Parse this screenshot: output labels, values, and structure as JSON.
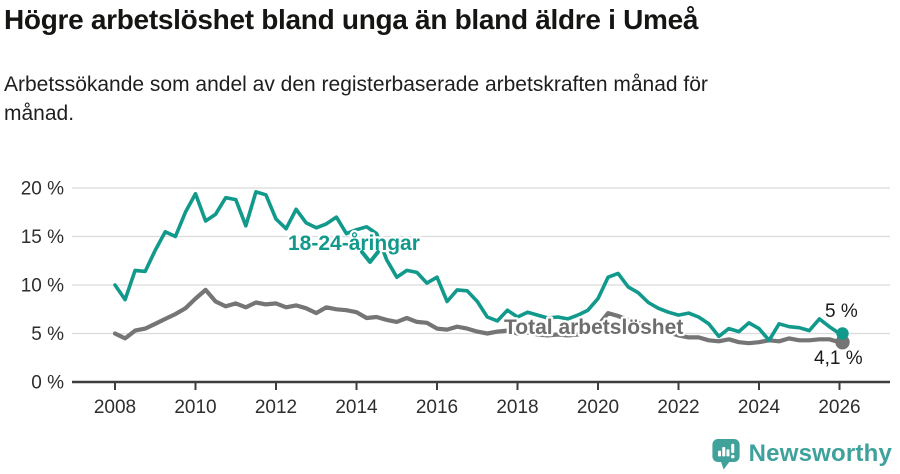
{
  "header": {
    "title": "Högre arbetslöshet bland unga än bland äldre i Umeå",
    "subtitle_line1": "Arbetssökande som andel av den registerbaserade arbetskraften månad för",
    "subtitle_line2": "månad."
  },
  "chart_data": {
    "type": "line",
    "title": "Högre arbetslöshet bland unga än bland äldre i Umeå",
    "subtitle": "Arbetssökande som andel av den registerbaserade arbetskraften månad för månad.",
    "xlabel": "",
    "ylabel": "",
    "x_unit": "decimal years (monthly series shown, sampled quarterly here)",
    "ylim": [
      0,
      20
    ],
    "grid": "horizontal",
    "legend_position": "inline-annotations",
    "yticks": [
      {
        "v": 0,
        "label": "0 %"
      },
      {
        "v": 5,
        "label": "5 %"
      },
      {
        "v": 10,
        "label": "10 %"
      },
      {
        "v": 15,
        "label": "15 %"
      },
      {
        "v": 20,
        "label": "20 %"
      }
    ],
    "xticks": [
      {
        "v": 2008,
        "label": "2008"
      },
      {
        "v": 2010,
        "label": "2010"
      },
      {
        "v": 2012,
        "label": "2012"
      },
      {
        "v": 2014,
        "label": "2014"
      },
      {
        "v": 2016,
        "label": "2016"
      },
      {
        "v": 2018,
        "label": "2018"
      },
      {
        "v": 2020,
        "label": "2020"
      },
      {
        "v": 2022,
        "label": "2022"
      },
      {
        "v": 2024,
        "label": "2024"
      },
      {
        "v": 2026,
        "label": "2026"
      }
    ],
    "x": [
      2008.0,
      2008.25,
      2008.5,
      2008.75,
      2009.0,
      2009.25,
      2009.5,
      2009.75,
      2010.0,
      2010.25,
      2010.5,
      2010.75,
      2011.0,
      2011.25,
      2011.5,
      2011.75,
      2012.0,
      2012.25,
      2012.5,
      2012.75,
      2013.0,
      2013.25,
      2013.5,
      2013.75,
      2014.0,
      2014.25,
      2014.5,
      2014.75,
      2015.0,
      2015.25,
      2015.5,
      2015.75,
      2016.0,
      2016.25,
      2016.5,
      2016.75,
      2017.0,
      2017.25,
      2017.5,
      2017.75,
      2018.0,
      2018.25,
      2018.5,
      2018.75,
      2019.0,
      2019.25,
      2019.5,
      2019.75,
      2020.0,
      2020.25,
      2020.5,
      2020.75,
      2021.0,
      2021.25,
      2021.5,
      2021.75,
      2022.0,
      2022.25,
      2022.5,
      2022.75,
      2023.0,
      2023.25,
      2023.5,
      2023.75,
      2024.0,
      2024.25,
      2024.5,
      2024.75,
      2025.0,
      2025.25,
      2025.5,
      2025.75,
      2026.0
    ],
    "series": [
      {
        "id": "youth",
        "name": "18-24-åringar",
        "color": "#11998c",
        "end_value_label": "5 %",
        "values": [
          10.0,
          8.5,
          11.5,
          11.4,
          13.6,
          15.5,
          15.0,
          17.5,
          19.4,
          16.6,
          17.3,
          19.0,
          18.8,
          16.1,
          19.6,
          19.3,
          16.8,
          15.8,
          17.8,
          16.4,
          15.9,
          16.3,
          17.0,
          15.3,
          15.7,
          16.0,
          15.3,
          12.6,
          10.8,
          11.5,
          11.3,
          10.2,
          10.8,
          8.3,
          9.5,
          9.4,
          8.3,
          6.7,
          6.3,
          7.4,
          6.7,
          7.2,
          6.9,
          6.6,
          6.7,
          6.5,
          6.9,
          7.4,
          8.6,
          10.8,
          11.2,
          9.8,
          9.2,
          8.2,
          7.6,
          7.2,
          6.9,
          7.1,
          6.7,
          6.0,
          4.7,
          5.5,
          5.2,
          6.1,
          5.5,
          4.3,
          6.0,
          5.7,
          5.6,
          5.3,
          6.5,
          5.7,
          5.0
        ]
      },
      {
        "id": "total",
        "name": "Total arbetslöshet",
        "color": "#757575",
        "end_value_label": "4,1 %",
        "values": [
          5.0,
          4.5,
          5.3,
          5.5,
          6.0,
          6.5,
          7.0,
          7.6,
          8.6,
          9.5,
          8.3,
          7.8,
          8.1,
          7.7,
          8.2,
          8.0,
          8.1,
          7.7,
          7.9,
          7.6,
          7.1,
          7.7,
          7.5,
          7.4,
          7.2,
          6.6,
          6.7,
          6.4,
          6.2,
          6.6,
          6.2,
          6.1,
          5.5,
          5.4,
          5.7,
          5.5,
          5.2,
          5.0,
          5.2,
          5.3,
          5.0,
          5.1,
          4.9,
          4.8,
          4.9,
          4.8,
          4.9,
          5.2,
          5.8,
          7.1,
          6.8,
          6.4,
          6.1,
          5.7,
          5.4,
          5.1,
          4.8,
          4.6,
          4.6,
          4.3,
          4.2,
          4.4,
          4.1,
          4.0,
          4.1,
          4.3,
          4.2,
          4.5,
          4.3,
          4.3,
          4.4,
          4.4,
          4.1
        ]
      }
    ],
    "annotations": [
      {
        "id": "youth_label",
        "text": "18-24-åringar",
        "color": "#11998c"
      },
      {
        "id": "youth_arrow",
        "symbol": "chevron-down",
        "color": "#11998c"
      },
      {
        "id": "total_label",
        "text": "Total arbetslöshet",
        "color": "#6e6e6e"
      },
      {
        "id": "youth_end",
        "text": "5 %",
        "color": "#1a1a1a"
      },
      {
        "id": "total_end",
        "text": "4,1 %",
        "color": "#1a1a1a"
      }
    ]
  },
  "branding": {
    "logo_text": "Newsworthy",
    "logo_color": "#3fa19c",
    "logo_icon": "speech-bubble-bar-chart-exclamation"
  }
}
